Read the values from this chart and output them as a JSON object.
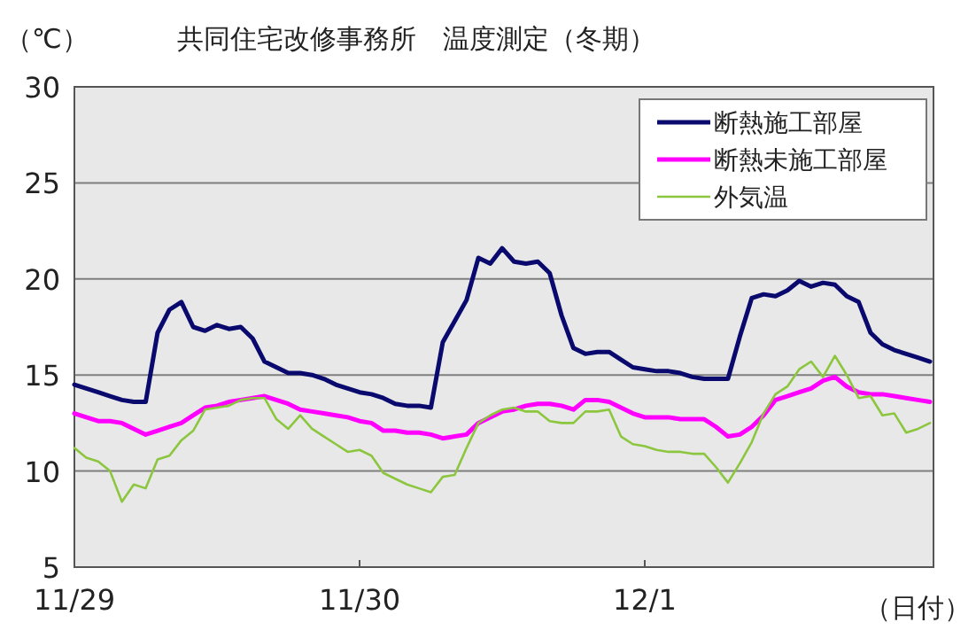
{
  "chart_data": {
    "type": "line",
    "title": "共同住宅改修事務所　温度測定（冬期）",
    "ylabel": "（℃）",
    "xlabel": "（日付）",
    "categories": [
      "11/29",
      null,
      null,
      null,
      null,
      null,
      null,
      null,
      null,
      null,
      null,
      null,
      null,
      null,
      null,
      null,
      null,
      null,
      null,
      null,
      null,
      null,
      null,
      null,
      "11/30",
      null,
      null,
      null,
      null,
      null,
      null,
      null,
      null,
      null,
      null,
      null,
      null,
      null,
      null,
      null,
      null,
      null,
      null,
      null,
      null,
      null,
      null,
      null,
      "12/1",
      null,
      null,
      null,
      null,
      null,
      null,
      null,
      null,
      null,
      null,
      null,
      null,
      null,
      null,
      null,
      null,
      null,
      null,
      null,
      null,
      null,
      null,
      null,
      null
    ],
    "ylim": [
      5,
      30
    ],
    "yticks": [
      5,
      10,
      15,
      20,
      25,
      30
    ],
    "grid": "y",
    "legend": "top right",
    "marker": "none",
    "line_style": "solid",
    "series": [
      {
        "name": "断熱施工部屋",
        "color": "#0a0a6e",
        "values": [
          14.5,
          14.3,
          14.1,
          13.9,
          13.7,
          13.6,
          13.6,
          17.2,
          18.4,
          18.8,
          17.5,
          17.3,
          17.6,
          17.4,
          17.5,
          16.9,
          15.7,
          15.4,
          15.1,
          15.1,
          15.0,
          14.8,
          14.5,
          14.3,
          14.1,
          14.0,
          13.8,
          13.5,
          13.4,
          13.4,
          13.3,
          16.7,
          17.8,
          18.9,
          21.1,
          20.8,
          21.6,
          20.9,
          20.8,
          20.9,
          20.3,
          18.1,
          16.4,
          16.1,
          16.2,
          16.2,
          15.8,
          15.4,
          15.3,
          15.2,
          15.2,
          15.1,
          14.9,
          14.8,
          14.8,
          14.8,
          17.0,
          19.0,
          19.2,
          19.1,
          19.4,
          19.9,
          19.6,
          19.8,
          19.7,
          19.1,
          18.8,
          17.2,
          16.6,
          16.3,
          16.1,
          15.9,
          15.7
        ]
      },
      {
        "name": "断熱未施工部屋",
        "color": "#ff00ff",
        "values": [
          13.0,
          12.8,
          12.6,
          12.6,
          12.5,
          12.2,
          11.9,
          12.1,
          12.3,
          12.5,
          12.9,
          13.3,
          13.4,
          13.6,
          13.7,
          13.8,
          13.9,
          13.7,
          13.5,
          13.2,
          13.1,
          13.0,
          12.9,
          12.8,
          12.6,
          12.5,
          12.1,
          12.1,
          12.0,
          12.0,
          11.9,
          11.7,
          11.8,
          11.9,
          12.5,
          12.8,
          13.1,
          13.2,
          13.4,
          13.5,
          13.5,
          13.4,
          13.2,
          13.7,
          13.7,
          13.6,
          13.3,
          13.0,
          12.8,
          12.8,
          12.8,
          12.7,
          12.7,
          12.7,
          12.3,
          11.8,
          11.9,
          12.3,
          12.9,
          13.7,
          13.9,
          14.1,
          14.3,
          14.7,
          14.9,
          14.4,
          14.1,
          14.0,
          14.0,
          13.9,
          13.8,
          13.7,
          13.6
        ]
      },
      {
        "name": "外気温",
        "color": "#8cc63f",
        "values": [
          11.2,
          10.7,
          10.5,
          10.0,
          8.4,
          9.3,
          9.1,
          10.6,
          10.8,
          11.6,
          12.1,
          13.2,
          13.3,
          13.4,
          13.7,
          13.8,
          13.8,
          12.7,
          12.2,
          12.9,
          12.2,
          11.8,
          11.4,
          11.0,
          11.1,
          10.8,
          9.9,
          9.6,
          9.3,
          9.1,
          8.9,
          9.7,
          9.8,
          11.2,
          12.5,
          12.9,
          13.2,
          13.3,
          13.1,
          13.1,
          12.6,
          12.5,
          12.5,
          13.1,
          13.1,
          13.2,
          11.8,
          11.4,
          11.3,
          11.1,
          11.0,
          11.0,
          10.9,
          10.9,
          10.2,
          9.4,
          10.4,
          11.5,
          13.0,
          14.0,
          14.4,
          15.3,
          15.7,
          14.9,
          16.0,
          15.0,
          13.8,
          13.9,
          12.9,
          13.0,
          12.0,
          12.2,
          12.5
        ]
      }
    ]
  }
}
